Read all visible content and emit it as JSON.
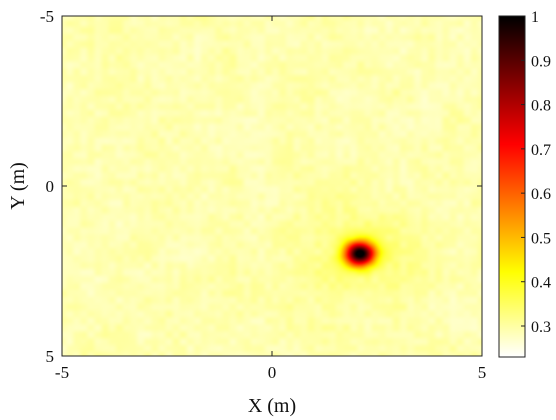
{
  "chart_data": {
    "type": "heatmap",
    "title": "",
    "xlabel": "X (m)",
    "ylabel": "Y (m)",
    "x_range": [
      -5,
      5
    ],
    "y_range": [
      -5,
      5
    ],
    "y_axis_reversed": true,
    "x_ticks": [
      -5,
      0,
      5
    ],
    "y_ticks": [
      -5,
      0,
      5
    ],
    "colormap": "hot",
    "color_range": [
      0.23,
      1.0
    ],
    "colorbar_ticks": [
      1,
      0.9,
      0.8,
      0.7,
      0.6,
      0.5,
      0.4,
      0.3
    ],
    "background_level": 0.29,
    "background_noise": 0.04,
    "peak": {
      "x": 2.1,
      "y": 2.0,
      "value": 1.0,
      "width_m": 0.25
    },
    "grid": false
  }
}
